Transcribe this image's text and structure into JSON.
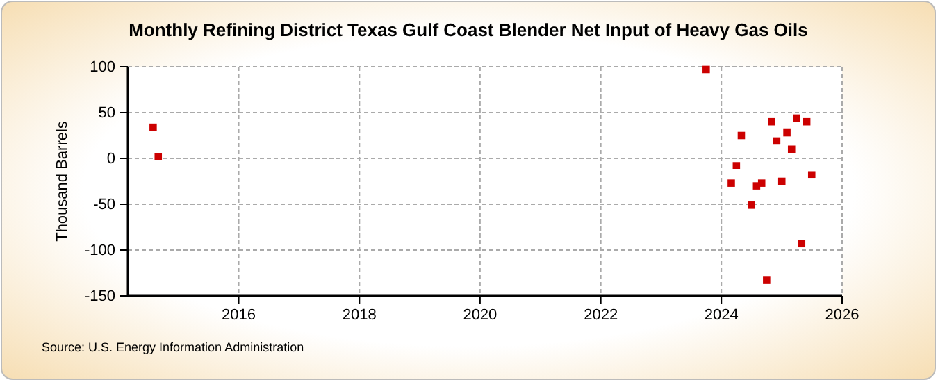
{
  "chart_data": {
    "type": "scatter",
    "title": "Monthly Refining District Texas Gulf Coast Blender Net Input of Heavy Gas Oils",
    "ylabel": "Thousand Barrels",
    "annotations": [
      "Source: U.S. Energy Information Administration"
    ],
    "x": [
      "2014-08",
      "2014-09",
      "2023-10",
      "2024-03",
      "2024-04",
      "2024-05",
      "2024-07",
      "2024-08",
      "2024-09",
      "2024-10",
      "2024-11",
      "2024-12",
      "2025-01",
      "2025-02",
      "2025-03",
      "2025-04",
      "2025-05",
      "2025-06",
      "2025-07"
    ],
    "series": [
      {
        "color": "#cc0000",
        "values": [
          34,
          2,
          97,
          -27,
          -8,
          25,
          -51,
          -30,
          -27,
          -133,
          40,
          19,
          -25,
          28,
          10,
          44,
          -93,
          40,
          -18
        ]
      }
    ],
    "xlim": [
      "2014-03",
      "2026-01"
    ],
    "xticks": [
      {
        "value": "2016-01",
        "label": "2016"
      },
      {
        "value": "2018-01",
        "label": "2018"
      },
      {
        "value": "2020-01",
        "label": "2020"
      },
      {
        "value": "2022-01",
        "label": "2022"
      },
      {
        "value": "2024-01",
        "label": "2024"
      },
      {
        "value": "2026-01",
        "label": "2026"
      }
    ],
    "ylim": [
      -150,
      100
    ],
    "yticks": [
      -150,
      -100,
      -50,
      0,
      50,
      100
    ],
    "grid": true,
    "marker": "square"
  }
}
